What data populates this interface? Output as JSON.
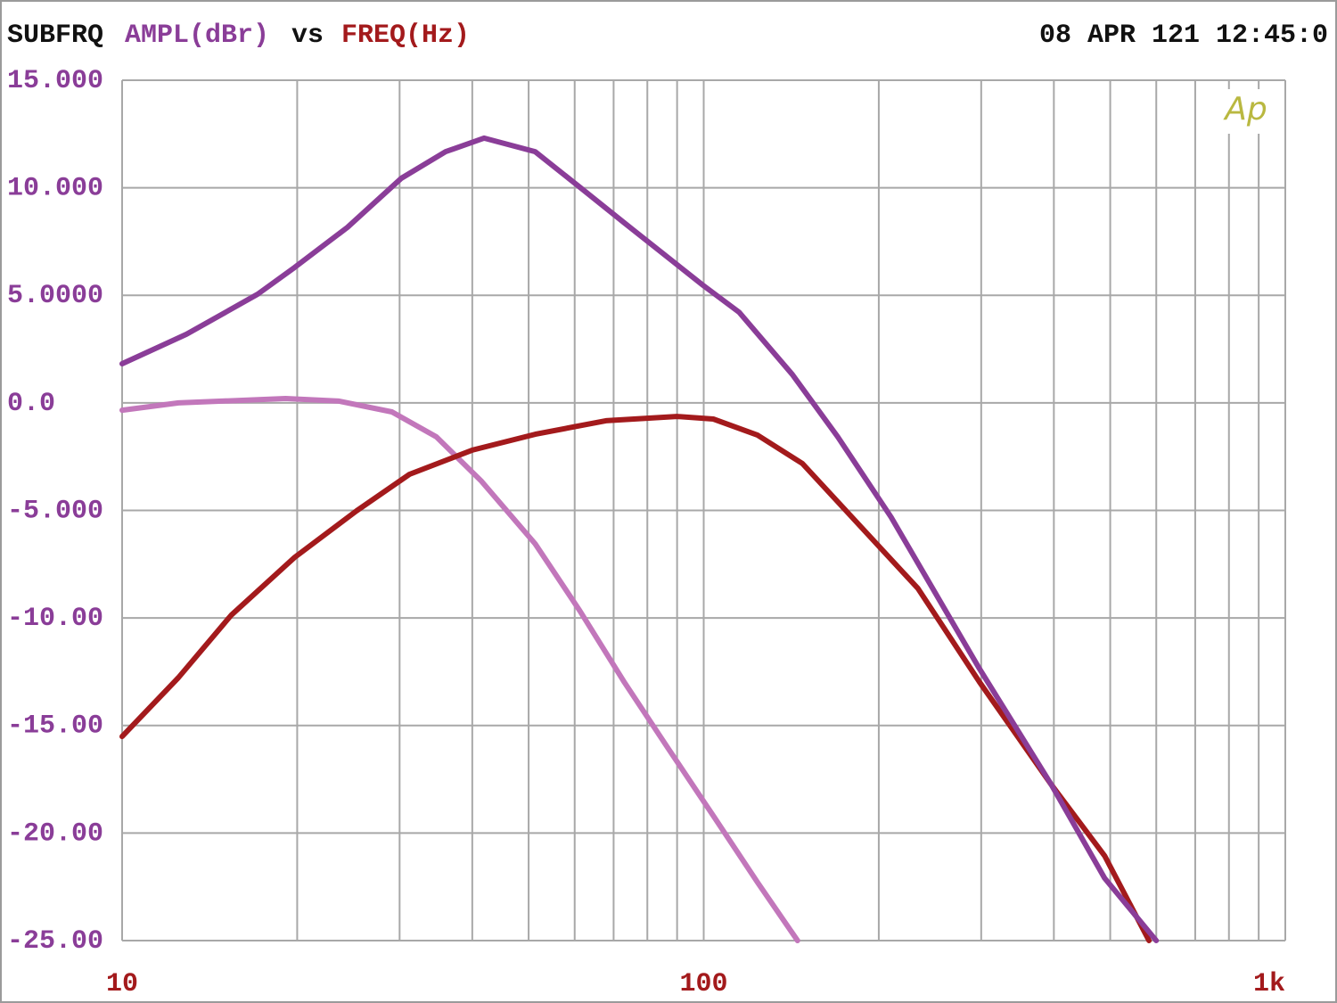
{
  "chart_data": {
    "type": "line",
    "title": "SUBFRQ",
    "ylabel": "AMPL(dBr)",
    "connector": "vs",
    "xlabel": "FREQ(Hz)",
    "timestamp": "08 APR 121 12:45:0",
    "logo": "Ap",
    "xscale": "log",
    "grid": true,
    "xlim": [
      10,
      1000
    ],
    "ylim": [
      -25,
      15
    ],
    "xticks": [
      10,
      100,
      {
        "value": 1000,
        "label": "1k"
      }
    ],
    "xgrid": [
      20,
      30,
      40,
      50,
      60,
      70,
      80,
      90,
      200,
      300,
      400,
      500,
      600,
      700,
      800,
      900
    ],
    "yticks": [
      {
        "value": 15,
        "label": "15.000"
      },
      {
        "value": 10,
        "label": "10.000"
      },
      {
        "value": 5,
        "label": "5.0000"
      },
      {
        "value": 0,
        "label": "0.0"
      },
      {
        "value": -5,
        "label": "-5.000"
      },
      {
        "value": -10,
        "label": "-10.00"
      },
      {
        "value": -15,
        "label": "-15.00"
      },
      {
        "value": -20,
        "label": "-20.00"
      },
      {
        "value": -25,
        "label": "-25.00"
      }
    ],
    "series": [
      {
        "color": "#c277bb",
        "x": [
          10,
          12.5,
          19.1,
          23.6,
          29.1,
          34.7,
          41.5,
          51.3,
          61.2,
          73.0,
          87.0,
          103.9,
          123.8,
          145.0
        ],
        "values": [
          -0.34,
          0.0,
          0.2,
          0.08,
          -0.42,
          -1.58,
          -3.65,
          -6.55,
          -9.66,
          -12.98,
          -16.09,
          -19.2,
          -22.3,
          -25
        ]
      },
      {
        "color": "#a31a1c",
        "x": [
          10,
          12.5,
          15.4,
          19.8,
          25.3,
          31.2,
          40.0,
          51.3,
          67.9,
          89.9,
          103.9,
          123.8,
          147.8,
          182.8,
          233.6,
          298,
          396,
          489,
          583
        ],
        "values": [
          -15.51,
          -12.77,
          -9.87,
          -7.18,
          -5.02,
          -3.32,
          -2.2,
          -1.46,
          -0.83,
          -0.63,
          -0.75,
          -1.5,
          -2.82,
          -5.52,
          -8.63,
          -12.98,
          -17.75,
          -21.06,
          -25
        ]
      },
      {
        "color": "#8a3d98",
        "x": [
          10,
          12.9,
          17.1,
          19.8,
          24.4,
          30.2,
          36.0,
          41.9,
          51.3,
          61.2,
          73.0,
          99.7,
          115,
          142,
          170,
          210,
          298,
          396,
          489,
          600
        ],
        "values": [
          1.82,
          3.19,
          5.05,
          6.3,
          8.16,
          10.44,
          11.68,
          12.31,
          11.68,
          10.03,
          8.37,
          5.47,
          4.22,
          1.32,
          -1.58,
          -5.31,
          -12.36,
          -17.75,
          -22.1,
          -25
        ]
      }
    ]
  }
}
